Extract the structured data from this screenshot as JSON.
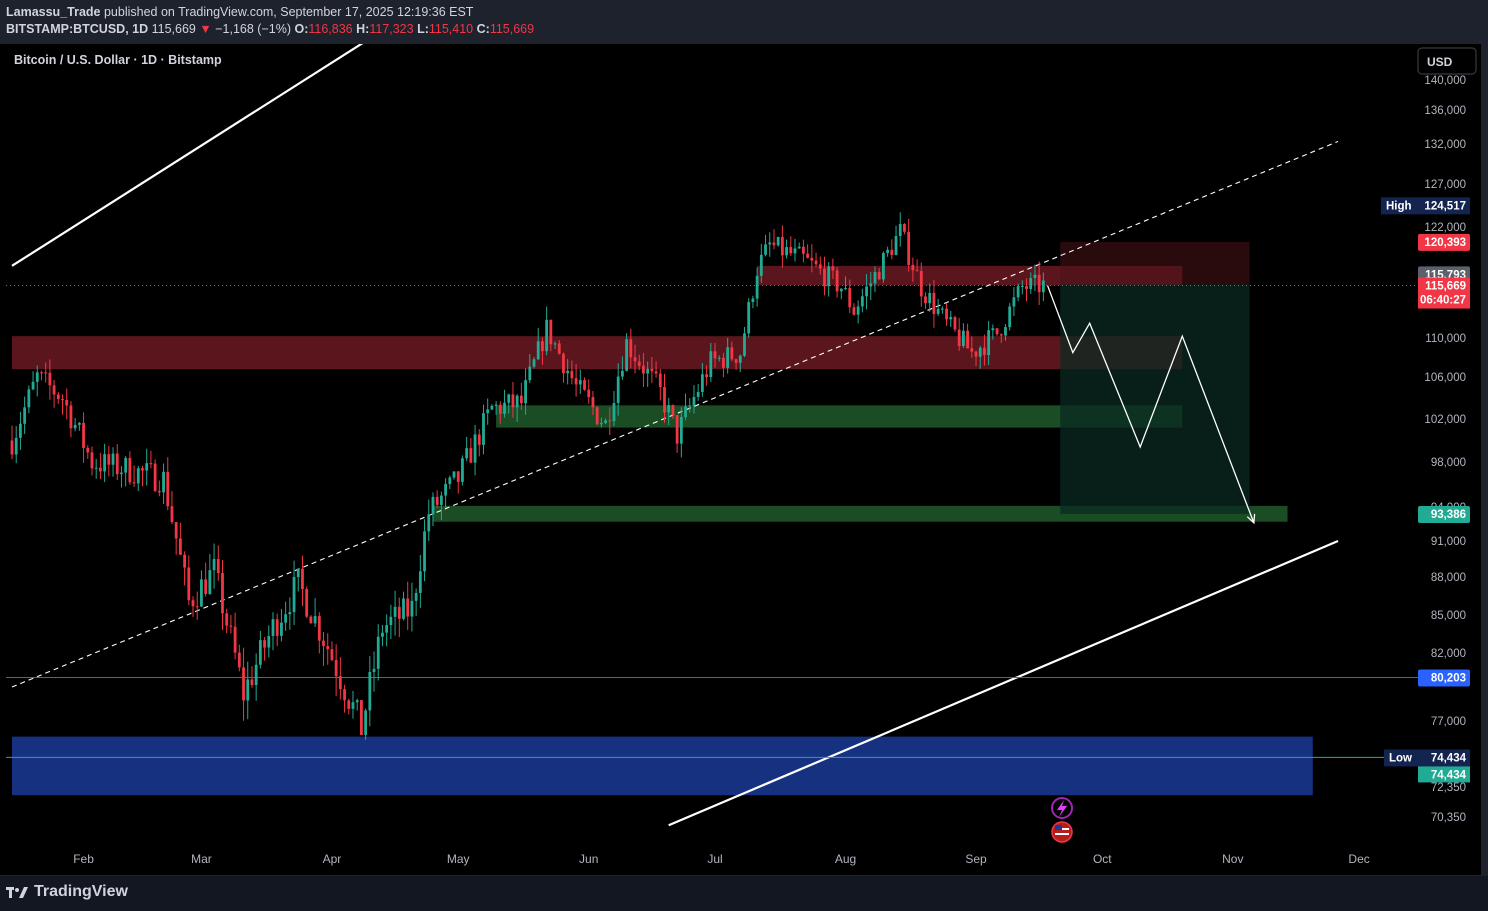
{
  "header": {
    "author": "Lamassu_Trade",
    "published_text": "published on TradingView.com, September 17, 2025 12:19:36 EST",
    "symbol": "BITSTAMP:BTCUSD, 1D",
    "last": "115,669",
    "change_arrow": "▼",
    "change": "−1,168 (−1%)",
    "o_label": "O:",
    "o": "116,836",
    "h_label": "H:",
    "h": "117,323",
    "l_label": "L:",
    "l": "115,410",
    "c_label": "C:",
    "c": "115,669"
  },
  "legend": {
    "title": "Bitcoin / U.S. Dollar · 1D · Bitstamp"
  },
  "currency_button": "USD",
  "brand": {
    "name": "TradingView",
    "icon": "tradingview-logo-icon"
  },
  "event_icons": [
    "lightning-event-icon",
    "us-flag-event-icon"
  ],
  "colors": {
    "up": "#22ab94",
    "down": "#f23645",
    "blue": "#2962ff",
    "red_zone": "#6b1a22",
    "green_zone": "#1f5a2a",
    "blue_zone": "#1a3a96",
    "target_box": "#0b2a22"
  },
  "labels": {
    "high_label": "High",
    "high_value": "124,517",
    "stop_value": "120,393",
    "entry_value": "115,793",
    "last_value": "115,669",
    "countdown": "06:40:27",
    "target_value": "93,386",
    "line_value": "80,203",
    "low_label": "Low",
    "low_value": "74,434",
    "low_close_value": "74,434"
  },
  "chart_data": {
    "type": "candlestick",
    "title": "Bitcoin / U.S. Dollar · 1D · Bitstamp",
    "y_axis_ticks": [
      "140,000",
      "136,000",
      "132,000",
      "127,000",
      "122,000",
      "110,000",
      "106,000",
      "102,000",
      "98,000",
      "94,000",
      "91,000",
      "88,000",
      "85,000",
      "82,000",
      "77,000",
      "72,350",
      "70,350"
    ],
    "x_axis_ticks": [
      "Feb",
      "Mar",
      "Apr",
      "May",
      "Jun",
      "Jul",
      "Aug",
      "Sep",
      "Oct",
      "Nov",
      "Dec"
    ],
    "x_start": "2025-01-15",
    "candle_anchors": [
      [
        "2025-01-15",
        100000
      ],
      [
        "2025-01-21",
        106000
      ],
      [
        "2025-01-27",
        104000
      ],
      [
        "2025-02-03",
        98000
      ],
      [
        "2025-02-10",
        97500
      ],
      [
        "2025-02-20",
        96500
      ],
      [
        "2025-02-26",
        86000
      ],
      [
        "2025-03-04",
        88500
      ],
      [
        "2025-03-11",
        79000
      ],
      [
        "2025-03-18",
        84000
      ],
      [
        "2025-03-24",
        87500
      ],
      [
        "2025-03-31",
        82500
      ],
      [
        "2025-04-08",
        76500
      ],
      [
        "2025-04-13",
        84000
      ],
      [
        "2025-04-20",
        85500
      ],
      [
        "2025-04-24",
        93500
      ],
      [
        "2025-05-01",
        96500
      ],
      [
        "2025-05-09",
        103000
      ],
      [
        "2025-05-16",
        103500
      ],
      [
        "2025-05-22",
        111000
      ],
      [
        "2025-05-29",
        105000
      ],
      [
        "2025-06-05",
        101500
      ],
      [
        "2025-06-10",
        109500
      ],
      [
        "2025-06-18",
        104500
      ],
      [
        "2025-06-22",
        100500
      ],
      [
        "2025-06-30",
        107500
      ],
      [
        "2025-07-07",
        108500
      ],
      [
        "2025-07-11",
        117500
      ],
      [
        "2025-07-14",
        120000
      ],
      [
        "2025-07-22",
        118500
      ],
      [
        "2025-07-31",
        115500
      ],
      [
        "2025-08-03",
        113000
      ],
      [
        "2025-08-09",
        117500
      ],
      [
        "2025-08-14",
        121500
      ],
      [
        "2025-08-19",
        115500
      ],
      [
        "2025-08-25",
        111500
      ],
      [
        "2025-08-31",
        108500
      ],
      [
        "2025-09-06",
        110500
      ],
      [
        "2025-09-12",
        115500
      ],
      [
        "2025-09-17",
        115669
      ]
    ],
    "zones": [
      {
        "name": "supply-zone-upper",
        "from": "2025-07-11",
        "to": "2025-10-20",
        "low": 115700,
        "high": 117800,
        "color": "#6b1a22"
      },
      {
        "name": "supply-zone",
        "from": "2025-01-15",
        "to": "2025-10-20",
        "low": 106800,
        "high": 110200,
        "color": "#6b1a22"
      },
      {
        "name": "demand-zone",
        "from": "2025-05-10",
        "to": "2025-10-20",
        "low": 101200,
        "high": 103300,
        "color": "#1f5a2a"
      },
      {
        "name": "demand-zone-lower",
        "from": "2025-04-25",
        "to": "2025-11-14",
        "low": 92700,
        "high": 94100,
        "color": "#1f5a2a"
      },
      {
        "name": "blue-zone",
        "from": "2025-01-15",
        "to": "2025-11-20",
        "low": 71800,
        "high": 75900,
        "color": "#1a3a96"
      }
    ],
    "position": {
      "entry": 115793,
      "stop": 120393,
      "target": 93386,
      "from": "2025-09-21",
      "to": "2025-11-05"
    },
    "projection_path": [
      [
        "2025-09-18",
        115669
      ],
      [
        "2025-09-24",
        108500
      ],
      [
        "2025-09-28",
        111600
      ],
      [
        "2025-10-10",
        99400
      ],
      [
        "2025-10-20",
        110200
      ],
      [
        "2025-11-06",
        92600
      ]
    ],
    "trendlines": [
      {
        "name": "upper-channel",
        "points": [
          [
            "2025-01-15",
            117800
          ],
          [
            "2025-05-29",
            163000
          ]
        ],
        "style": "solid"
      },
      {
        "name": "mid-channel",
        "points": [
          [
            "2025-01-15",
            79500
          ],
          [
            "2025-11-26",
            132300
          ]
        ],
        "style": "dashed"
      },
      {
        "name": "lower-channel",
        "points": [
          [
            "2025-06-20",
            69800
          ],
          [
            "2025-11-26",
            91000
          ]
        ],
        "style": "solid"
      }
    ],
    "hlines": [
      {
        "name": "line-80203",
        "value": 80203,
        "color": "#2962ff"
      },
      {
        "name": "low-line",
        "value": 74434,
        "color": "#22ab94"
      }
    ],
    "grid": false,
    "legend_position": "top-left"
  }
}
